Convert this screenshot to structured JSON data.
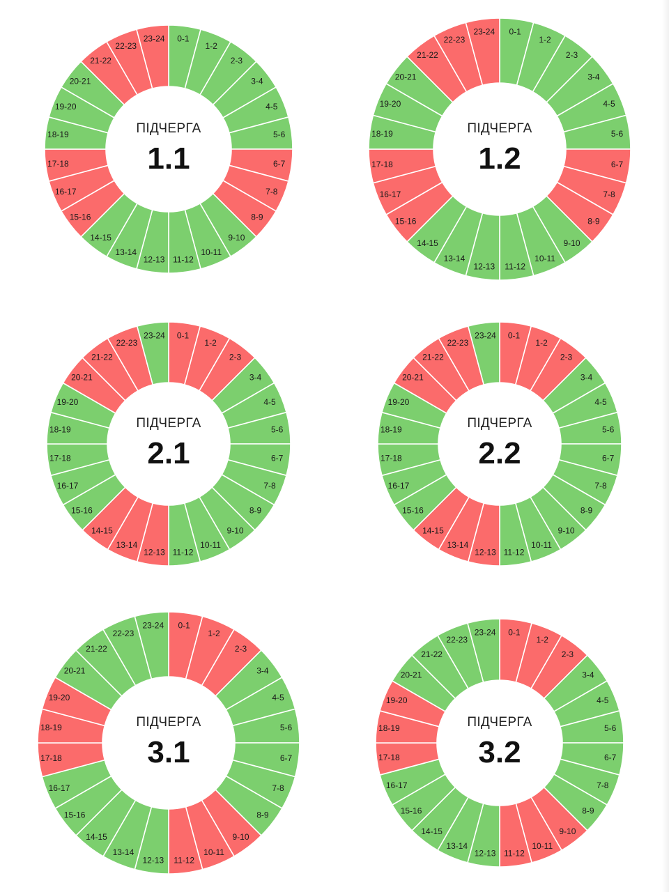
{
  "colors": {
    "on": "#7ccf6e",
    "off": "#fb6b6b",
    "separator": "#ffffff"
  },
  "chart_data": [
    {
      "type": "pie",
      "variant": "donut",
      "caption": "ПІДЧЕРГА",
      "title": "1.1",
      "categories": [
        "0-1",
        "1-2",
        "2-3",
        "3-4",
        "4-5",
        "5-6",
        "6-7",
        "7-8",
        "8-9",
        "9-10",
        "10-11",
        "11-12",
        "12-13",
        "13-14",
        "14-15",
        "15-16",
        "16-17",
        "17-18",
        "18-19",
        "19-20",
        "20-21",
        "21-22",
        "22-23",
        "23-24"
      ],
      "states": [
        "on",
        "on",
        "on",
        "on",
        "on",
        "on",
        "off",
        "off",
        "off",
        "on",
        "on",
        "on",
        "on",
        "on",
        "on",
        "off",
        "off",
        "off",
        "on",
        "on",
        "on",
        "off",
        "off",
        "off"
      ]
    },
    {
      "type": "pie",
      "variant": "donut",
      "caption": "ПІДЧЕРГА",
      "title": "1.2",
      "categories": [
        "0-1",
        "1-2",
        "2-3",
        "3-4",
        "4-5",
        "5-6",
        "6-7",
        "7-8",
        "8-9",
        "9-10",
        "10-11",
        "11-12",
        "12-13",
        "13-14",
        "14-15",
        "15-16",
        "16-17",
        "17-18",
        "18-19",
        "19-20",
        "20-21",
        "21-22",
        "22-23",
        "23-24"
      ],
      "states": [
        "on",
        "on",
        "on",
        "on",
        "on",
        "on",
        "off",
        "off",
        "off",
        "on",
        "on",
        "on",
        "on",
        "on",
        "on",
        "off",
        "off",
        "off",
        "on",
        "on",
        "on",
        "off",
        "off",
        "off"
      ]
    },
    {
      "type": "pie",
      "variant": "donut",
      "caption": "ПІДЧЕРГА",
      "title": "2.1",
      "categories": [
        "0-1",
        "1-2",
        "2-3",
        "3-4",
        "4-5",
        "5-6",
        "6-7",
        "7-8",
        "8-9",
        "9-10",
        "10-11",
        "11-12",
        "12-13",
        "13-14",
        "14-15",
        "15-16",
        "16-17",
        "17-18",
        "18-19",
        "19-20",
        "20-21",
        "21-22",
        "22-23",
        "23-24"
      ],
      "states": [
        "off",
        "off",
        "off",
        "on",
        "on",
        "on",
        "on",
        "on",
        "on",
        "on",
        "on",
        "on",
        "off",
        "off",
        "off",
        "on",
        "on",
        "on",
        "on",
        "on",
        "off",
        "off",
        "off",
        "on"
      ]
    },
    {
      "type": "pie",
      "variant": "donut",
      "caption": "ПІДЧЕРГА",
      "title": "2.2",
      "categories": [
        "0-1",
        "1-2",
        "2-3",
        "3-4",
        "4-5",
        "5-6",
        "6-7",
        "7-8",
        "8-9",
        "9-10",
        "10-11",
        "11-12",
        "12-13",
        "13-14",
        "14-15",
        "15-16",
        "16-17",
        "17-18",
        "18-19",
        "19-20",
        "20-21",
        "21-22",
        "22-23",
        "23-24"
      ],
      "states": [
        "off",
        "off",
        "off",
        "on",
        "on",
        "on",
        "on",
        "on",
        "on",
        "on",
        "on",
        "on",
        "off",
        "off",
        "off",
        "on",
        "on",
        "on",
        "on",
        "on",
        "off",
        "off",
        "off",
        "on"
      ]
    },
    {
      "type": "pie",
      "variant": "donut",
      "caption": "ПІДЧЕРГА",
      "title": "3.1",
      "categories": [
        "0-1",
        "1-2",
        "2-3",
        "3-4",
        "4-5",
        "5-6",
        "6-7",
        "7-8",
        "8-9",
        "9-10",
        "10-11",
        "11-12",
        "12-13",
        "13-14",
        "14-15",
        "15-16",
        "16-17",
        "17-18",
        "18-19",
        "19-20",
        "20-21",
        "21-22",
        "22-23",
        "23-24"
      ],
      "states": [
        "off",
        "off",
        "off",
        "on",
        "on",
        "on",
        "on",
        "on",
        "on",
        "off",
        "off",
        "off",
        "on",
        "on",
        "on",
        "on",
        "on",
        "off",
        "off",
        "off",
        "on",
        "on",
        "on",
        "on"
      ]
    },
    {
      "type": "pie",
      "variant": "donut",
      "caption": "ПІДЧЕРГА",
      "title": "3.2",
      "categories": [
        "0-1",
        "1-2",
        "2-3",
        "3-4",
        "4-5",
        "5-6",
        "6-7",
        "7-8",
        "8-9",
        "9-10",
        "10-11",
        "11-12",
        "12-13",
        "13-14",
        "14-15",
        "15-16",
        "16-17",
        "17-18",
        "18-19",
        "19-20",
        "20-21",
        "21-22",
        "22-23",
        "23-24"
      ],
      "states": [
        "off",
        "off",
        "off",
        "on",
        "on",
        "on",
        "on",
        "on",
        "on",
        "off",
        "off",
        "off",
        "on",
        "on",
        "on",
        "on",
        "on",
        "off",
        "off",
        "off",
        "on",
        "on",
        "on",
        "on"
      ]
    }
  ]
}
